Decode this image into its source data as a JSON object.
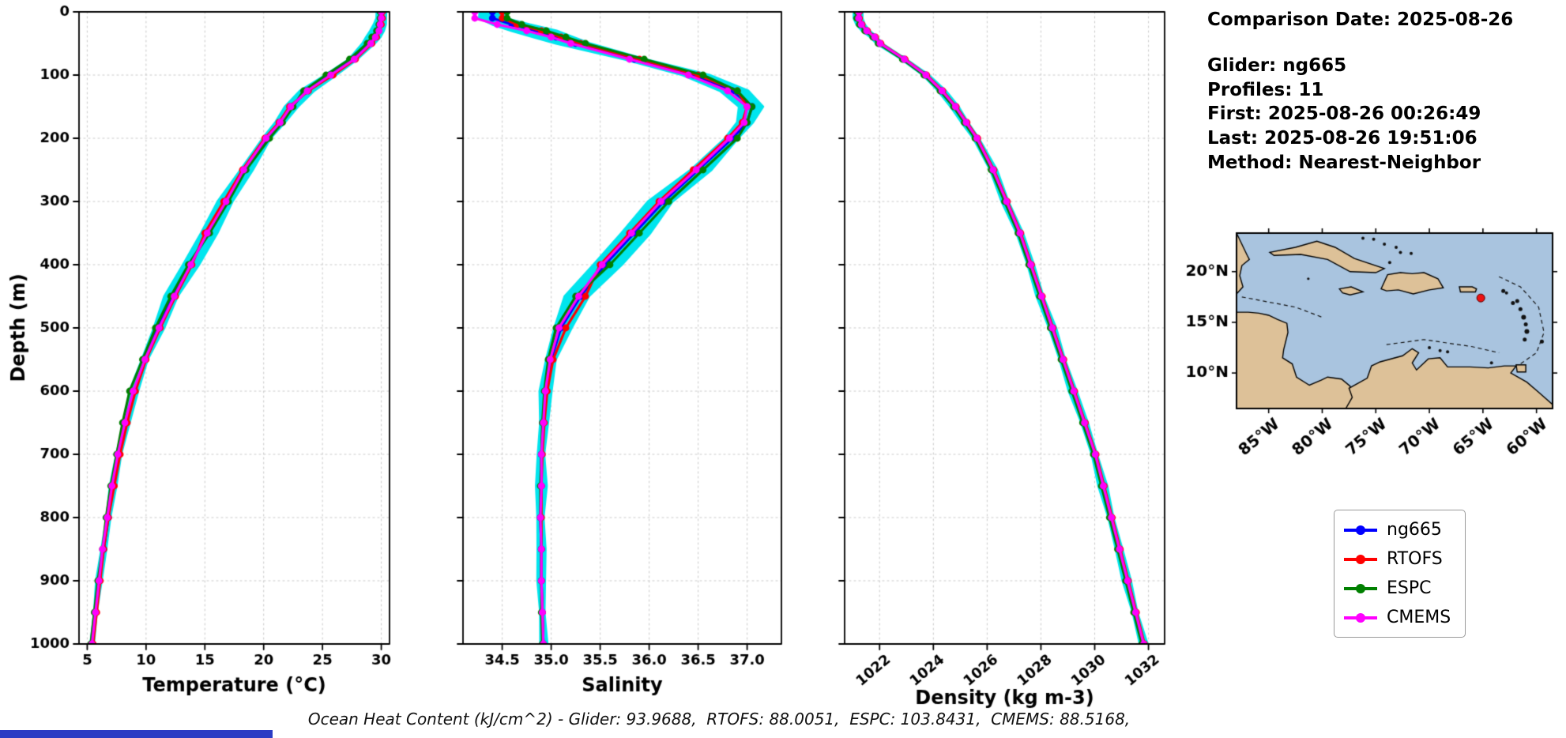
{
  "info_panel": {
    "comparison_date": "Comparison Date: 2025-08-26",
    "glider": "Glider: ng665",
    "profiles": "Profiles: 11",
    "first": "First: 2025-08-26 00:26:49",
    "last": "Last: 2025-08-26 19:51:06",
    "method": "Method: Nearest-Neighbor"
  },
  "footer": {
    "ohc": "Ocean Heat Content (kJ/cm^2) - Glider: 93.9688,  RTOFS: 88.0051,  ESPC: 103.8431,  CMEMS: 88.5168,"
  },
  "legend": {
    "position": "outside-right",
    "entries": [
      {
        "label": "ng665",
        "color": "#0000ff"
      },
      {
        "label": "RTOFS",
        "color": "#ff0000"
      },
      {
        "label": "ESPC",
        "color": "#008000"
      },
      {
        "label": "CMEMS",
        "color": "#ff00ff"
      }
    ]
  },
  "map": {
    "lat_ticks": [
      {
        "label": "20°N",
        "value": 20
      },
      {
        "label": "15°N",
        "value": 15
      },
      {
        "label": "10°N",
        "value": 10
      }
    ],
    "lon_ticks": [
      {
        "label": "85°W",
        "value": -85
      },
      {
        "label": "80°W",
        "value": -80
      },
      {
        "label": "75°W",
        "value": -75
      },
      {
        "label": "70°W",
        "value": -70
      },
      {
        "label": "65°W",
        "value": -65
      },
      {
        "label": "60°W",
        "value": -60
      }
    ],
    "marker": {
      "lon": -65.2,
      "lat": 17.4,
      "color": "#ee1111"
    },
    "ocean_color": "#a9c4df",
    "land_color": "#ddc198"
  },
  "chart_data": [
    {
      "type": "line",
      "title": "",
      "xlabel": "Temperature (°C)",
      "ylabel": "Depth (m)",
      "grid": true,
      "xlim": [
        4.3,
        30.7
      ],
      "xticks": [
        5,
        10,
        15,
        20,
        25,
        30
      ],
      "xtick_labels": [
        "5",
        "10",
        "15",
        "20",
        "25",
        "30"
      ],
      "xtick_rotation": 0,
      "ylim": [
        0,
        1000
      ],
      "y_inverted": true,
      "yticks": [
        0,
        100,
        200,
        300,
        400,
        500,
        600,
        700,
        800,
        900,
        1000
      ],
      "show_ytick_labels": true,
      "depths": [
        0,
        10,
        20,
        30,
        40,
        50,
        75,
        100,
        125,
        150,
        175,
        200,
        250,
        300,
        350,
        400,
        450,
        500,
        550,
        600,
        650,
        700,
        750,
        800,
        850,
        900,
        950,
        1000
      ],
      "envelope": {
        "name": "glider-profile-spread",
        "color": "#00e5ee",
        "spread": [
          0.3,
          0.3,
          0.4,
          0.5,
          0.6,
          0.6,
          0.5,
          0.5,
          0.5,
          0.45,
          0.4,
          0.4,
          0.5,
          0.6,
          0.7,
          0.7,
          0.55,
          0.4,
          0.3,
          0.3,
          0.25,
          0.25,
          0.2,
          0.2,
          0.2,
          0.18,
          0.15,
          0.12
        ]
      },
      "series": [
        {
          "name": "ng665",
          "color": "#0000ff",
          "values": [
            30.0,
            30.0,
            29.9,
            29.7,
            29.4,
            29.0,
            27.6,
            25.6,
            23.6,
            22.4,
            21.5,
            20.3,
            18.4,
            16.9,
            15.3,
            13.7,
            12.3,
            11.0,
            9.9,
            9.0,
            8.3,
            7.7,
            7.2,
            6.8,
            6.4,
            6.0,
            5.7,
            5.4
          ]
        },
        {
          "name": "RTOFS",
          "color": "#ff0000",
          "values": [
            30.1,
            30.1,
            30.0,
            29.8,
            29.6,
            29.2,
            27.8,
            25.9,
            23.8,
            22.2,
            21.3,
            20.1,
            18.2,
            16.6,
            15.0,
            13.9,
            12.5,
            11.2,
            10.0,
            9.1,
            8.4,
            7.8,
            7.3,
            6.8,
            6.4,
            6.1,
            5.8,
            5.5
          ]
        },
        {
          "name": "ESPC",
          "color": "#008000",
          "values": [
            29.9,
            29.9,
            29.8,
            29.6,
            29.2,
            28.8,
            27.3,
            25.3,
            23.4,
            22.5,
            21.6,
            20.5,
            18.5,
            17.0,
            15.4,
            13.6,
            12.1,
            10.8,
            9.7,
            8.6,
            8.0,
            7.5,
            7.0,
            6.6,
            6.3,
            5.9,
            5.6,
            5.3
          ]
        },
        {
          "name": "CMEMS",
          "color": "#ff00ff",
          "values": [
            30.0,
            30.0,
            29.9,
            29.8,
            29.5,
            29.1,
            27.7,
            25.7,
            23.7,
            22.3,
            21.4,
            20.2,
            18.3,
            16.8,
            15.2,
            13.8,
            12.4,
            11.1,
            9.9,
            8.9,
            8.2,
            7.6,
            7.1,
            6.7,
            6.3,
            6.0,
            5.7,
            5.4
          ]
        }
      ]
    },
    {
      "type": "line",
      "title": "",
      "xlabel": "Salinity",
      "ylabel": "",
      "grid": true,
      "xlim": [
        34.1,
        37.35
      ],
      "xticks": [
        34.5,
        35.0,
        35.5,
        36.0,
        36.5,
        37.0
      ],
      "xtick_labels": [
        "34.5",
        "35.0",
        "35.5",
        "36.0",
        "36.5",
        "37.0"
      ],
      "xtick_rotation": 0,
      "ylim": [
        0,
        1000
      ],
      "y_inverted": true,
      "yticks": [
        0,
        100,
        200,
        300,
        400,
        500,
        600,
        700,
        800,
        900,
        1000
      ],
      "show_ytick_labels": false,
      "depths": [
        0,
        10,
        20,
        30,
        40,
        50,
        75,
        100,
        125,
        150,
        175,
        200,
        250,
        300,
        350,
        400,
        450,
        500,
        550,
        600,
        650,
        700,
        750,
        800,
        850,
        900,
        950,
        1000
      ],
      "envelope": {
        "name": "glider-profile-spread",
        "color": "#00e5ee",
        "spread": [
          0.1,
          0.1,
          0.15,
          0.2,
          0.2,
          0.2,
          0.15,
          0.15,
          0.12,
          0.1,
          0.08,
          0.08,
          0.1,
          0.12,
          0.15,
          0.15,
          0.12,
          0.08,
          0.06,
          0.05,
          0.04,
          0.04,
          0.04,
          0.04,
          0.04,
          0.03,
          0.03,
          0.03
        ]
      },
      "series": [
        {
          "name": "ng665",
          "color": "#0000ff",
          "values": [
            34.4,
            34.4,
            34.6,
            34.85,
            35.05,
            35.25,
            35.85,
            36.45,
            36.85,
            37.05,
            37.0,
            36.85,
            36.5,
            36.15,
            35.85,
            35.55,
            35.3,
            35.1,
            35.0,
            34.95,
            34.92,
            34.9,
            34.9,
            34.89,
            34.9,
            34.9,
            34.91,
            34.92
          ]
        },
        {
          "name": "RTOFS",
          "color": "#ff0000",
          "values": [
            34.5,
            34.5,
            34.65,
            34.9,
            35.1,
            35.3,
            35.9,
            36.5,
            36.9,
            37.0,
            36.95,
            36.8,
            36.45,
            36.1,
            35.8,
            35.5,
            35.35,
            35.15,
            35.02,
            34.96,
            34.93,
            34.91,
            34.9,
            34.9,
            34.9,
            34.9,
            34.91,
            34.92
          ]
        },
        {
          "name": "ESPC",
          "color": "#008000",
          "values": [
            34.55,
            34.55,
            34.7,
            34.95,
            35.15,
            35.35,
            35.95,
            36.55,
            36.9,
            37.05,
            37.0,
            36.9,
            36.55,
            36.2,
            35.9,
            35.6,
            35.25,
            35.05,
            34.97,
            34.93,
            34.91,
            34.9,
            34.89,
            34.89,
            34.9,
            34.9,
            34.9,
            34.91
          ]
        },
        {
          "name": "CMEMS",
          "color": "#ff00ff",
          "values": [
            34.22,
            34.22,
            34.45,
            34.75,
            35.0,
            35.2,
            35.8,
            36.4,
            36.8,
            37.0,
            36.97,
            36.82,
            36.48,
            36.12,
            35.82,
            35.52,
            35.28,
            35.08,
            34.99,
            34.94,
            34.92,
            34.9,
            34.9,
            34.89,
            34.9,
            34.9,
            34.91,
            34.92
          ]
        }
      ]
    },
    {
      "type": "line",
      "title": "",
      "xlabel": "Density (kg m-3)",
      "ylabel": "",
      "grid": true,
      "xlim": [
        1020.7,
        1032.6
      ],
      "xticks": [
        1022,
        1024,
        1026,
        1028,
        1030,
        1032
      ],
      "xtick_labels": [
        "1022",
        "1024",
        "1026",
        "1028",
        "1030",
        "1032"
      ],
      "xtick_rotation": 40,
      "ylim": [
        0,
        1000
      ],
      "y_inverted": true,
      "yticks": [
        0,
        100,
        200,
        300,
        400,
        500,
        600,
        700,
        800,
        900,
        1000
      ],
      "show_ytick_labels": false,
      "depths": [
        0,
        10,
        20,
        30,
        40,
        50,
        75,
        100,
        125,
        150,
        175,
        200,
        250,
        300,
        350,
        400,
        450,
        500,
        550,
        600,
        650,
        700,
        750,
        800,
        850,
        900,
        950,
        1000
      ],
      "envelope": {
        "name": "glider-profile-spread",
        "color": "#00e5ee",
        "spread": [
          0.12,
          0.12,
          0.12,
          0.12,
          0.12,
          0.12,
          0.12,
          0.12,
          0.12,
          0.12,
          0.12,
          0.12,
          0.12,
          0.12,
          0.12,
          0.12,
          0.12,
          0.12,
          0.12,
          0.12,
          0.12,
          0.12,
          0.12,
          0.12,
          0.12,
          0.12,
          0.12,
          0.12
        ]
      },
      "series": [
        {
          "name": "ng665",
          "color": "#0000ff",
          "values": [
            1021.2,
            1021.2,
            1021.3,
            1021.5,
            1021.8,
            1022.0,
            1022.9,
            1023.7,
            1024.3,
            1024.8,
            1025.2,
            1025.6,
            1026.2,
            1026.7,
            1027.2,
            1027.6,
            1028.0,
            1028.4,
            1028.8,
            1029.2,
            1029.6,
            1030.0,
            1030.3,
            1030.6,
            1030.9,
            1031.2,
            1031.5,
            1031.8
          ]
        },
        {
          "name": "RTOFS",
          "color": "#ff0000",
          "values": [
            1021.25,
            1021.25,
            1021.35,
            1021.55,
            1021.85,
            1022.05,
            1022.95,
            1023.75,
            1024.35,
            1024.85,
            1025.25,
            1025.65,
            1026.25,
            1026.75,
            1027.25,
            1027.65,
            1028.05,
            1028.45,
            1028.85,
            1029.25,
            1029.65,
            1030.05,
            1030.35,
            1030.65,
            1030.95,
            1031.25,
            1031.55,
            1031.85
          ]
        },
        {
          "name": "ESPC",
          "color": "#008000",
          "values": [
            1021.15,
            1021.15,
            1021.25,
            1021.45,
            1021.75,
            1021.95,
            1022.85,
            1023.65,
            1024.25,
            1024.75,
            1025.15,
            1025.55,
            1026.15,
            1026.65,
            1027.15,
            1027.55,
            1027.95,
            1028.35,
            1028.75,
            1029.15,
            1029.55,
            1029.95,
            1030.25,
            1030.55,
            1030.85,
            1031.15,
            1031.45,
            1031.75
          ]
        },
        {
          "name": "CMEMS",
          "color": "#ff00ff",
          "values": [
            1021.22,
            1021.22,
            1021.32,
            1021.52,
            1021.82,
            1022.02,
            1022.92,
            1023.72,
            1024.32,
            1024.82,
            1025.22,
            1025.62,
            1026.22,
            1026.72,
            1027.22,
            1027.62,
            1028.02,
            1028.42,
            1028.82,
            1029.22,
            1029.62,
            1030.02,
            1030.32,
            1030.62,
            1030.92,
            1031.22,
            1031.52,
            1031.82
          ]
        }
      ]
    }
  ]
}
